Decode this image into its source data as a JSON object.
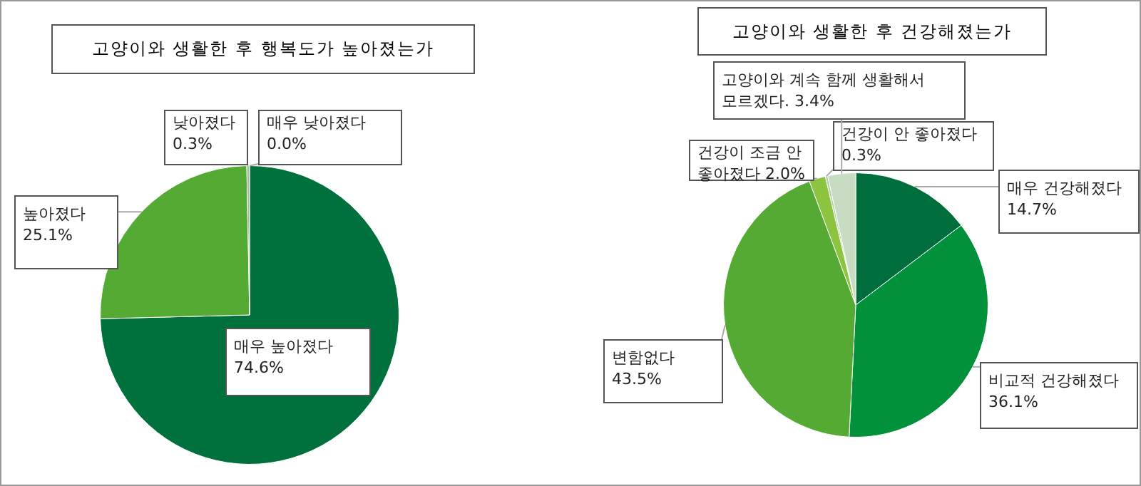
{
  "chart_data": [
    {
      "type": "pie",
      "title": "고양이와 생활한 후 행복도가 높아졌는가",
      "categories": [
        "매우 높아졌다",
        "높아졌다",
        "낮아졌다",
        "매우 낮아졌다"
      ],
      "values": [
        74.6,
        25.1,
        0.3,
        0.0
      ],
      "colors": [
        "#00703c",
        "#55aa33",
        "#9dbf9a",
        "#c3d8c0"
      ],
      "value_labels": [
        "74.6%",
        "25.1%",
        "0.3%",
        "0.0%"
      ]
    },
    {
      "type": "pie",
      "title": "고양이와 생활한 후 건강해졌는가",
      "categories": [
        "매우 건강해졌다",
        "비교적 건강해졌다",
        "변함없다",
        "건강이 조금 안 좋아졌다",
        "건강이 안 좋아졌다",
        "고양이와 계속 함께 생활해서 모르겠다."
      ],
      "values": [
        14.7,
        36.1,
        43.5,
        2.0,
        0.3,
        3.4
      ],
      "colors": [
        "#006e3c",
        "#00913a",
        "#55aa33",
        "#8cc43f",
        "#b4cfa8",
        "#c8dcc4"
      ],
      "value_labels": [
        "14.7%",
        "36.1%",
        "43.5%",
        "2.0%",
        "0.3%",
        "3.4%"
      ]
    }
  ]
}
